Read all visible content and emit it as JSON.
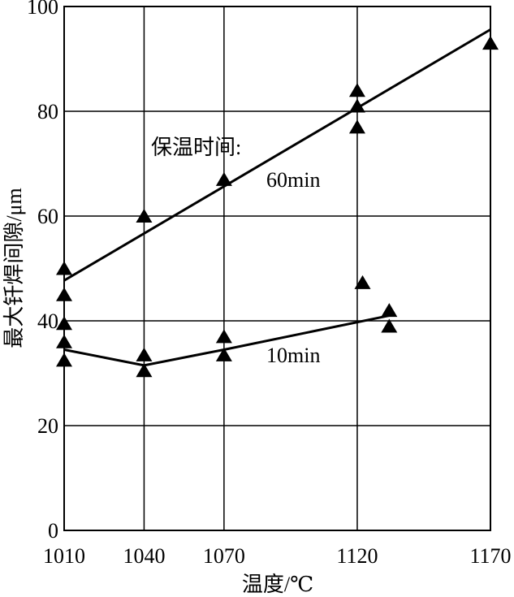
{
  "chart_data": {
    "type": "scatter",
    "title": "",
    "xlabel": "温度/℃",
    "ylabel": "最大钎焊间隙/μm",
    "xlim": [
      1010,
      1170
    ],
    "ylim": [
      0,
      100
    ],
    "x_ticks": [
      1010,
      1040,
      1070,
      1120,
      1170
    ],
    "x_tick_labels": [
      "1010",
      "1040",
      "1070",
      "1120",
      "1170"
    ],
    "y_ticks": [
      0,
      20,
      40,
      60,
      80,
      100
    ],
    "y_tick_labels": [
      "0",
      "20",
      "40",
      "60",
      "80",
      "100"
    ],
    "grid": true,
    "legend_title": "保温时间:",
    "series": [
      {
        "name": "60min",
        "points": [
          [
            1010,
            50
          ],
          [
            1010,
            45
          ],
          [
            1040,
            60
          ],
          [
            1070,
            67
          ],
          [
            1120,
            84
          ],
          [
            1120,
            81
          ],
          [
            1120,
            77
          ],
          [
            1170,
            93
          ]
        ],
        "fit_line": [
          [
            1010,
            47.7
          ],
          [
            1170,
            95.6
          ]
        ]
      },
      {
        "name": "10min",
        "points": [
          [
            1010,
            39.5
          ],
          [
            1010,
            36
          ],
          [
            1010,
            32.5
          ],
          [
            1040,
            33.5
          ],
          [
            1040,
            30.5
          ],
          [
            1070,
            37
          ],
          [
            1070,
            33.5
          ],
          [
            1122,
            47.3
          ],
          [
            1132,
            42
          ],
          [
            1132,
            39
          ]
        ],
        "fit_line": [
          [
            1010,
            34.5
          ],
          [
            1040,
            31.5
          ],
          [
            1070,
            34.5
          ],
          [
            1132,
            41
          ]
        ]
      }
    ]
  }
}
